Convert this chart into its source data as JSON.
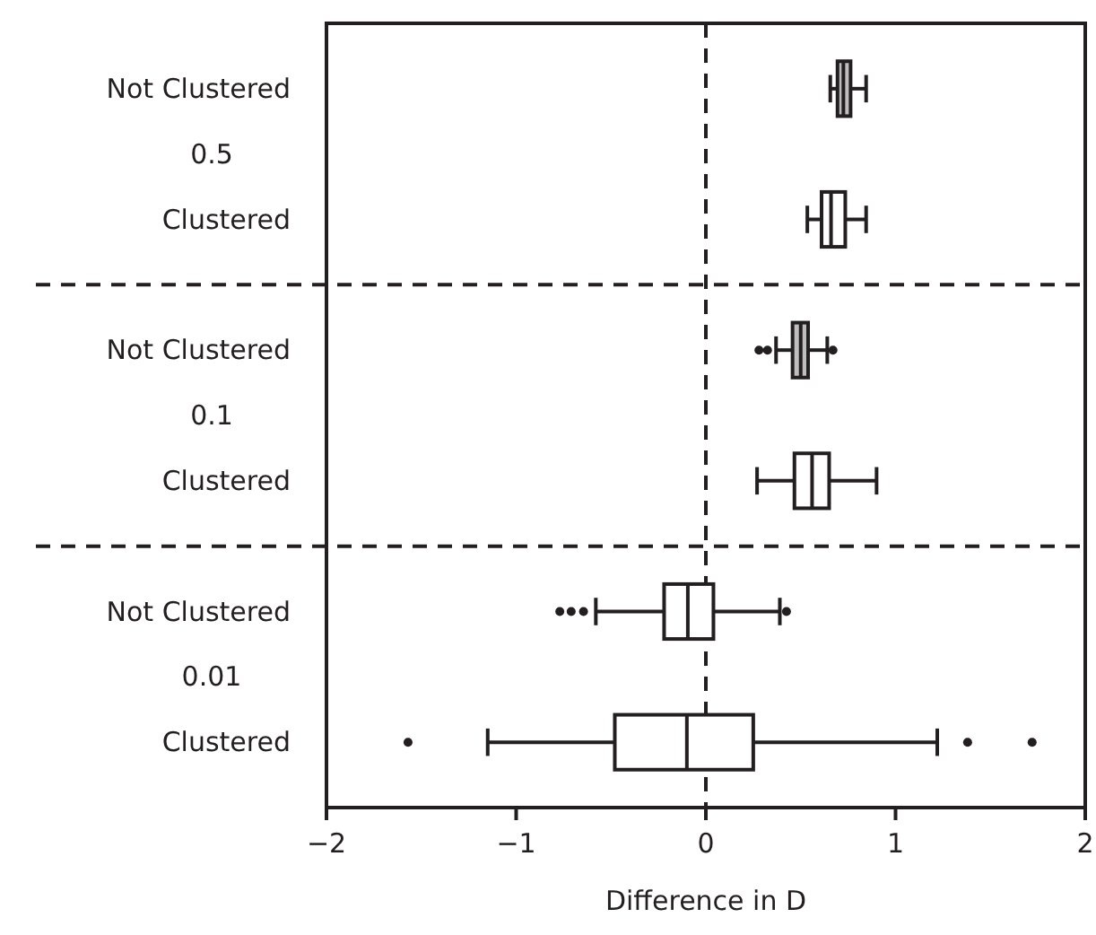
{
  "chart_data": {
    "type": "box",
    "orientation": "horizontal",
    "xlabel": "Difference in D",
    "categories": [
      "Not Clustered",
      "Clustered",
      "Not Clustered",
      "Clustered",
      "Not Clustered",
      "Clustered"
    ],
    "boxes": [
      {
        "low": 0.656,
        "q1": 0.694,
        "median": 0.725,
        "q3": 0.763,
        "high": 0.845
      },
      {
        "low": 0.535,
        "q1": 0.61,
        "median": 0.66,
        "q3": 0.735,
        "high": 0.845
      },
      {
        "low": 0.37,
        "q1": 0.457,
        "median": 0.5,
        "q3": 0.539,
        "high": 0.64,
        "outliers": [
          0.28,
          0.325,
          0.67
        ]
      },
      {
        "low": 0.27,
        "q1": 0.467,
        "median": 0.56,
        "q3": 0.65,
        "high": 0.9
      },
      {
        "low": -0.58,
        "q1": -0.22,
        "median": -0.095,
        "q3": 0.04,
        "high": 0.39,
        "outliers": [
          -0.77,
          -0.71,
          -0.645,
          0.425
        ]
      },
      {
        "low": -1.15,
        "q1": -0.48,
        "median": -0.1,
        "q3": 0.25,
        "high": 1.22,
        "outliers": [
          -1.57,
          1.38,
          1.72
        ]
      }
    ],
    "colors": [
      "#bfbfbf",
      "#ffffff",
      "#bfbfbf",
      "#ffffff",
      "#ffffff",
      "#ffffff"
    ],
    "xlim": [
      -2,
      2
    ],
    "xticks": [
      {
        "value": -2,
        "label": "−2"
      },
      {
        "value": -1,
        "label": "−1"
      },
      0,
      1,
      2
    ],
    "annotations": [
      "0.5",
      "0.1",
      "0.01"
    ],
    "ref_lines": [
      {
        "axis": "x",
        "value": 0,
        "line_style": "dashed"
      }
    ]
  }
}
